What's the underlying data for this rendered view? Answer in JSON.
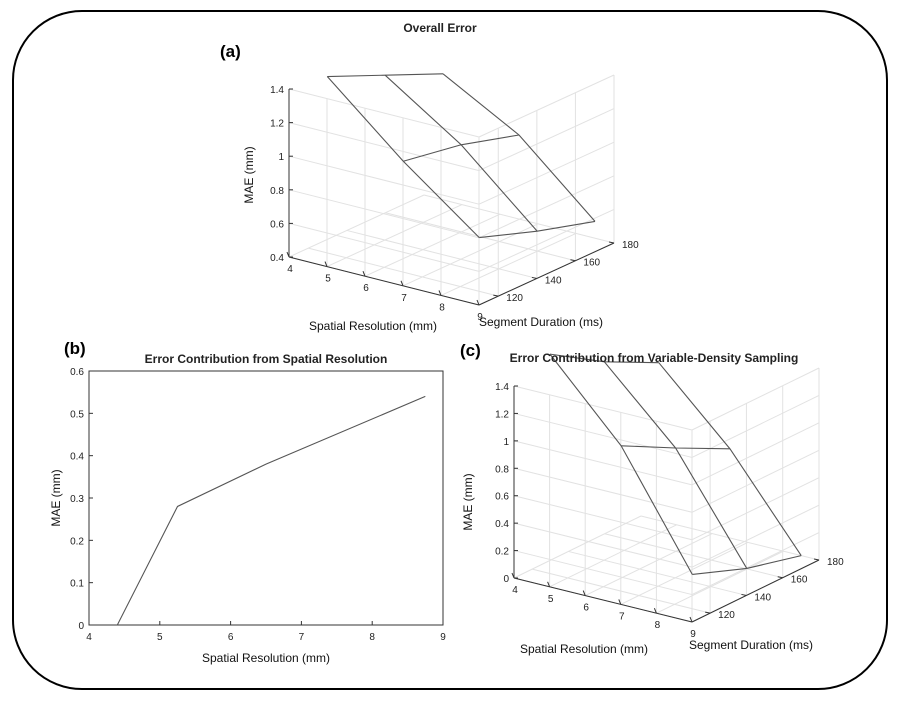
{
  "panels": {
    "a": "(a)",
    "b": "(b)",
    "c": "(c)"
  },
  "chart_data": [
    {
      "id": "a",
      "type": "surface3d",
      "title": "Overall Error",
      "xlabel": "Spatial Resolution (mm)",
      "ylabel": "Segment Duration (ms)",
      "zlabel": "MAE (mm)",
      "x_ticks": [
        4,
        5,
        6,
        7,
        8,
        9
      ],
      "y_ticks": [
        120,
        140,
        160,
        180
      ],
      "z_ticks": [
        "0.4",
        "0.6",
        "0.8",
        "1",
        "1.2",
        "1.4"
      ],
      "xlim": [
        4,
        9
      ],
      "ylim": [
        110,
        180
      ],
      "zlim": [
        0.4,
        1.4
      ],
      "x": [
        4.5,
        6.5,
        8.5
      ],
      "y": [
        120,
        150,
        180
      ],
      "z": [
        [
          1.45,
          1.06,
          0.72
        ],
        [
          1.3,
          1.0,
          0.6
        ],
        [
          1.15,
          0.9,
          0.5
        ]
      ],
      "grid": true
    },
    {
      "id": "b",
      "type": "line",
      "title": "Error Contribution from Spatial Resolution",
      "xlabel": "Spatial Resolution (mm)",
      "ylabel": "MAE (mm)",
      "x_ticks": [
        "4",
        "5",
        "6",
        "7",
        "8",
        "9"
      ],
      "y_ticks": [
        "0",
        "0.1",
        "0.2",
        "0.3",
        "0.4",
        "0.5",
        "0.6"
      ],
      "xlim": [
        4,
        9
      ],
      "ylim": [
        0,
        0.6
      ],
      "x": [
        4.4,
        5.25,
        6.5,
        8.75
      ],
      "y": [
        0.0,
        0.28,
        0.38,
        0.54
      ],
      "grid": false
    },
    {
      "id": "c",
      "type": "surface3d",
      "title": "Error Contribution from Variable-Density Sampling",
      "xlabel": "Spatial Resolution (mm)",
      "ylabel": "Segment Duration (ms)",
      "zlabel": "MAE (mm)",
      "x_ticks": [
        4,
        5,
        6,
        7,
        8,
        9
      ],
      "y_ticks": [
        120,
        140,
        160,
        180
      ],
      "z_ticks": [
        "0",
        "0.2",
        "0.4",
        "0.6",
        "0.8",
        "1",
        "1.2",
        "1.4"
      ],
      "xlim": [
        4,
        9
      ],
      "ylim": [
        110,
        180
      ],
      "zlim": [
        0,
        1.4
      ],
      "x": [
        4.5,
        6.5,
        8.5
      ],
      "y": [
        120,
        150,
        180
      ],
      "z": [
        [
          1.6,
          1.06,
          0.25
        ],
        [
          1.35,
          0.85,
          0.1
        ],
        [
          1.15,
          0.65,
          0.0
        ]
      ],
      "grid": true
    }
  ]
}
